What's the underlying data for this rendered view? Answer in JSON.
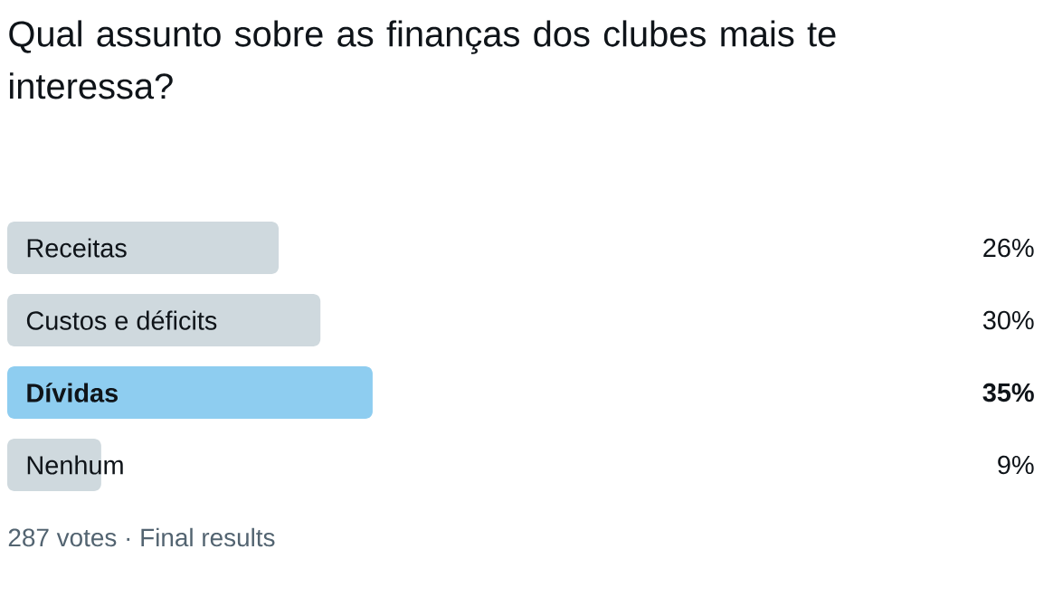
{
  "chart_data": {
    "type": "bar",
    "orientation": "horizontal",
    "title": "Qual assunto sobre as finanças dos clubes mais te interessa?",
    "categories": [
      "Receitas",
      "Custos e déficits",
      "Dívidas",
      "Nenhum"
    ],
    "values": [
      26,
      30,
      35,
      9
    ],
    "colors": [
      "#cfd9de",
      "#cfd9de",
      "#8ecdf0",
      "#cfd9de"
    ],
    "value_labels": [
      "26%",
      "30%",
      "35%",
      "9%"
    ],
    "tick_labels": false,
    "annotations": [
      "287 votes · Final results"
    ]
  }
}
